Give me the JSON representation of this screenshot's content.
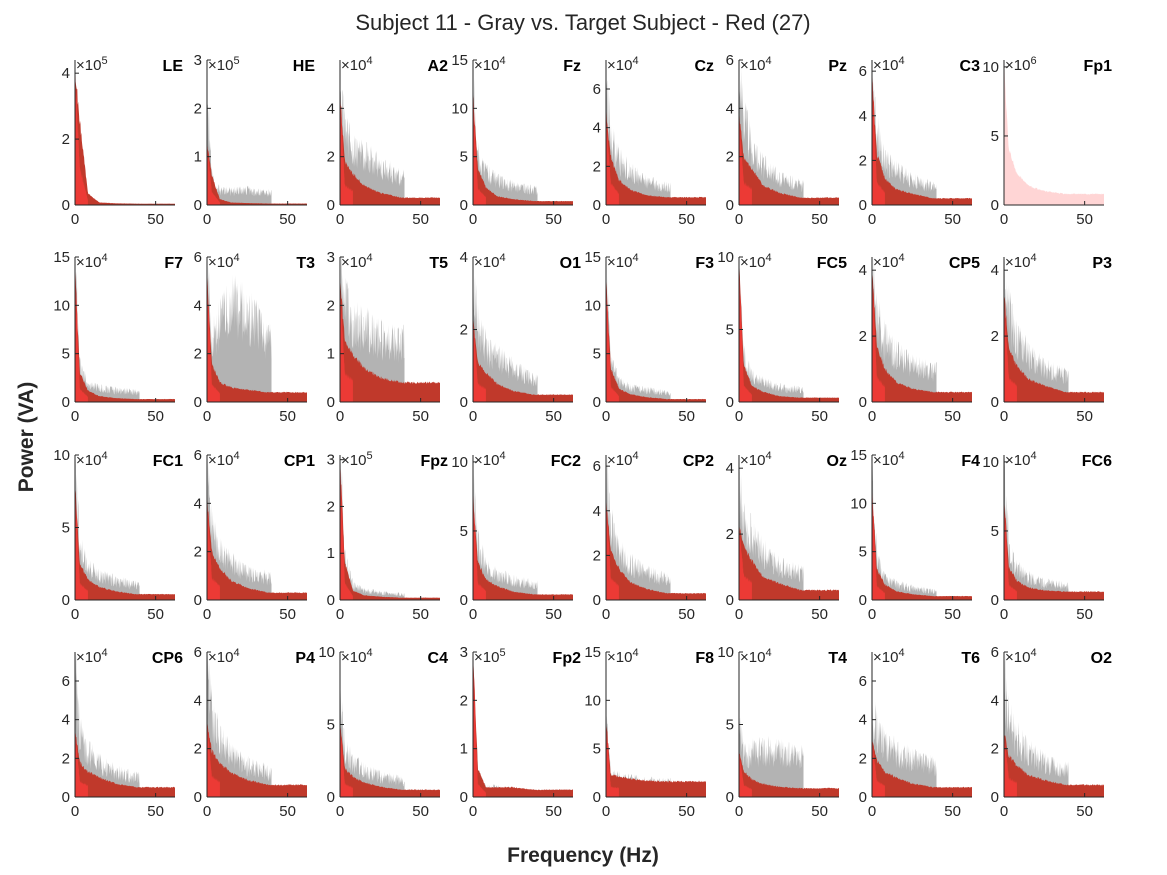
{
  "chart_data": {
    "type": "area",
    "title": "Subject 11 - Gray vs. Target Subject - Red (27)",
    "xlabel": "Frequency (Hz)",
    "ylabel": "Power (VA)",
    "xlim": [
      0,
      62
    ],
    "xticks": [
      0,
      50
    ],
    "grid": false,
    "colors": {
      "gray": "#b3b3b3",
      "red": "#c0392b",
      "red_bright": "#ff3b3b",
      "axes": "#262626"
    },
    "series_legend": [
      {
        "name": "Gray",
        "color": "#b3b3b3"
      },
      {
        "name": "Red",
        "color": "#c0392b"
      }
    ],
    "panels": [
      {
        "label": "LE",
        "exp": "5",
        "ymax": 4.4,
        "yticks": [
          "0",
          "2",
          "4"
        ],
        "gray": [
          0.0,
          0.4,
          0.17,
          0.05,
          0.04,
          0.04
        ],
        "red": [
          4.1,
          2.5,
          0.35,
          0.08,
          0.05,
          0.04
        ]
      },
      {
        "label": "HE",
        "exp": "5",
        "ymax": 3,
        "yticks": [
          "0",
          "1",
          "2",
          "3"
        ],
        "gray": [
          2.2,
          0.55,
          0.3,
          0.28,
          0.3,
          0.25
        ],
        "red": [
          1.3,
          0.6,
          0.12,
          0.05,
          0.04,
          0.03
        ]
      },
      {
        "label": "A2",
        "exp": "4",
        "ymax": 6,
        "yticks": [
          "0",
          "2",
          "4"
        ],
        "gray": [
          4.8,
          3.0,
          2.3,
          2.0,
          1.6,
          1.1
        ],
        "red": [
          4.7,
          1.8,
          1.3,
          0.8,
          0.5,
          0.3
        ]
      },
      {
        "label": "Fz",
        "exp": "4",
        "ymax": 15,
        "yticks": [
          "0",
          "5",
          "10",
          "15"
        ],
        "gray": [
          12.0,
          5.0,
          3.2,
          2.5,
          1.9,
          1.5
        ],
        "red": [
          11.5,
          3.8,
          1.8,
          0.9,
          0.6,
          0.4
        ]
      },
      {
        "label": "Cz",
        "exp": "4",
        "ymax": 7.5,
        "yticks": [
          "0",
          "2",
          "4",
          "6"
        ],
        "gray": [
          6.8,
          3.4,
          2.3,
          1.7,
          1.2,
          0.9
        ],
        "red": [
          4.8,
          2.5,
          1.3,
          0.8,
          0.5,
          0.4
        ]
      },
      {
        "label": "Pz",
        "exp": "4",
        "ymax": 6,
        "yticks": [
          "0",
          "2",
          "4",
          "6"
        ],
        "gray": [
          5.0,
          3.5,
          2.3,
          1.6,
          1.1,
          0.8
        ],
        "red": [
          3.7,
          2.0,
          1.5,
          0.8,
          0.5,
          0.3
        ]
      },
      {
        "label": "C3",
        "exp": "4",
        "ymax": 6.5,
        "yticks": [
          "0",
          "2",
          "4",
          "6"
        ],
        "gray": [
          6.2,
          3.2,
          2.0,
          1.5,
          1.1,
          0.8
        ],
        "red": [
          5.8,
          2.3,
          1.2,
          0.7,
          0.5,
          0.3
        ]
      },
      {
        "label": "Fp1",
        "exp": "6",
        "ymax": 10.5,
        "yticks": [
          "0",
          "5",
          "10"
        ],
        "gray": [
          0.0,
          0.0,
          0.0,
          0.0,
          0.0,
          0.0
        ],
        "red": [
          10.2,
          4.0,
          2.3,
          1.4,
          1.0,
          0.8
        ]
      },
      {
        "label": "F7",
        "exp": "4",
        "ymax": 15,
        "yticks": [
          "0",
          "5",
          "10",
          "15"
        ],
        "gray": [
          14.0,
          3.5,
          1.8,
          1.4,
          1.2,
          1.0
        ],
        "red": [
          14.0,
          3.0,
          1.2,
          0.6,
          0.4,
          0.3
        ]
      },
      {
        "label": "T3",
        "exp": "4",
        "ymax": 6,
        "yticks": [
          "0",
          "2",
          "4",
          "6"
        ],
        "gray": [
          5.3,
          2.6,
          3.2,
          4.0,
          3.6,
          2.5
        ],
        "red": [
          5.3,
          1.6,
          0.8,
          0.6,
          0.5,
          0.4
        ]
      },
      {
        "label": "T5",
        "exp": "4",
        "ymax": 3,
        "yticks": [
          "0",
          "1",
          "2",
          "3"
        ],
        "gray": [
          2.8,
          2.0,
          1.6,
          1.5,
          1.3,
          1.2
        ],
        "red": [
          2.5,
          1.3,
          1.0,
          0.7,
          0.5,
          0.4
        ]
      },
      {
        "label": "O1",
        "exp": "4",
        "ymax": 4,
        "yticks": [
          "0",
          "2",
          "4"
        ],
        "gray": [
          3.6,
          2.2,
          1.5,
          1.2,
          0.9,
          0.6
        ],
        "red": [
          2.3,
          1.1,
          0.8,
          0.5,
          0.3,
          0.2
        ]
      },
      {
        "label": "F3",
        "exp": "4",
        "ymax": 15,
        "yticks": [
          "0",
          "5",
          "10",
          "15"
        ],
        "gray": [
          13.5,
          4.0,
          2.0,
          1.5,
          1.2,
          0.9
        ],
        "red": [
          13.0,
          3.5,
          1.4,
          0.8,
          0.5,
          0.3
        ]
      },
      {
        "label": "FC5",
        "exp": "4",
        "ymax": 10,
        "yticks": [
          "0",
          "5",
          "10"
        ],
        "gray": [
          9.7,
          3.0,
          1.8,
          1.3,
          1.0,
          0.8
        ],
        "red": [
          9.7,
          2.5,
          1.1,
          0.7,
          0.4,
          0.3
        ]
      },
      {
        "label": "CP5",
        "exp": "4",
        "ymax": 4.4,
        "yticks": [
          "0",
          "2",
          "4"
        ],
        "gray": [
          4.2,
          2.7,
          1.8,
          1.4,
          1.1,
          0.9
        ],
        "red": [
          4.0,
          1.7,
          1.0,
          0.6,
          0.4,
          0.3
        ]
      },
      {
        "label": "P3",
        "exp": "4",
        "ymax": 4.4,
        "yticks": [
          "0",
          "2",
          "4"
        ],
        "gray": [
          3.8,
          2.7,
          1.9,
          1.4,
          1.0,
          0.8
        ],
        "red": [
          3.3,
          1.6,
          1.1,
          0.7,
          0.5,
          0.3
        ]
      },
      {
        "label": "FC1",
        "exp": "4",
        "ymax": 10,
        "yticks": [
          "0",
          "5",
          "10"
        ],
        "gray": [
          8.5,
          3.8,
          2.2,
          1.7,
          1.3,
          1.0
        ],
        "red": [
          8.0,
          2.5,
          1.4,
          0.9,
          0.6,
          0.4
        ]
      },
      {
        "label": "CP1",
        "exp": "4",
        "ymax": 6,
        "yticks": [
          "0",
          "2",
          "4",
          "6"
        ],
        "gray": [
          5.0,
          3.0,
          2.0,
          1.5,
          1.1,
          0.9
        ],
        "red": [
          4.3,
          2.0,
          1.3,
          0.8,
          0.5,
          0.3
        ]
      },
      {
        "label": "Fpz",
        "exp": "5",
        "ymax": 3.1,
        "yticks": [
          "0",
          "1",
          "2",
          "3"
        ],
        "gray": [
          2.9,
          0.9,
          0.3,
          0.2,
          0.15,
          0.12
        ],
        "red": [
          3.0,
          0.8,
          0.2,
          0.1,
          0.07,
          0.05
        ]
      },
      {
        "label": "FC2",
        "exp": "4",
        "ymax": 10.5,
        "yticks": [
          "0",
          "5",
          "10"
        ],
        "gray": [
          8.5,
          4.0,
          2.3,
          1.8,
          1.4,
          1.1
        ],
        "red": [
          7.8,
          2.7,
          1.5,
          1.0,
          0.6,
          0.4
        ]
      },
      {
        "label": "CP2",
        "exp": "4",
        "ymax": 6.5,
        "yticks": [
          "0",
          "2",
          "4",
          "6"
        ],
        "gray": [
          5.5,
          3.2,
          2.2,
          1.6,
          1.2,
          0.9
        ],
        "red": [
          4.6,
          2.2,
          1.4,
          0.8,
          0.5,
          0.3
        ]
      },
      {
        "label": "Oz",
        "exp": "4",
        "ymax": 4.4,
        "yticks": [
          "0",
          "2",
          "4"
        ],
        "gray": [
          3.5,
          2.4,
          1.9,
          1.4,
          1.0,
          0.8
        ],
        "red": [
          2.3,
          1.6,
          1.2,
          0.7,
          0.5,
          0.3
        ]
      },
      {
        "label": "F4",
        "exp": "4",
        "ymax": 15,
        "yticks": [
          "0",
          "5",
          "10",
          "15"
        ],
        "gray": [
          12.0,
          4.0,
          2.2,
          1.6,
          1.2,
          0.9
        ],
        "red": [
          11.5,
          3.2,
          1.6,
          0.9,
          0.6,
          0.4
        ]
      },
      {
        "label": "FC6",
        "exp": "4",
        "ymax": 10.5,
        "yticks": [
          "0",
          "5",
          "10"
        ],
        "gray": [
          9.8,
          3.6,
          2.2,
          1.6,
          1.2,
          1.0
        ],
        "red": [
          7.5,
          2.4,
          1.4,
          0.9,
          0.7,
          0.6
        ]
      },
      {
        "label": "CP6",
        "exp": "4",
        "ymax": 7.5,
        "yticks": [
          "0",
          "2",
          "4",
          "6"
        ],
        "gray": [
          6.5,
          3.2,
          2.3,
          1.7,
          1.3,
          1.0
        ],
        "red": [
          3.5,
          1.8,
          1.3,
          1.0,
          0.7,
          0.5
        ]
      },
      {
        "label": "P4",
        "exp": "4",
        "ymax": 6,
        "yticks": [
          "0",
          "2",
          "4",
          "6"
        ],
        "gray": [
          5.5,
          3.3,
          2.3,
          1.7,
          1.3,
          1.0
        ],
        "red": [
          3.2,
          1.9,
          1.4,
          1.0,
          0.7,
          0.5
        ]
      },
      {
        "label": "C4",
        "exp": "4",
        "ymax": 10,
        "yticks": [
          "0",
          "5",
          "10"
        ],
        "gray": [
          6.5,
          3.2,
          2.3,
          1.8,
          1.4,
          1.1
        ],
        "red": [
          5.2,
          2.0,
          1.4,
          1.0,
          0.7,
          0.5
        ]
      },
      {
        "label": "Fp2",
        "exp": "5",
        "ymax": 3,
        "yticks": [
          "0",
          "1",
          "2",
          "3"
        ],
        "gray": [
          2.6,
          0.5,
          0.2,
          0.2,
          0.15,
          0.1
        ],
        "red": [
          3.0,
          0.6,
          0.2,
          0.2,
          0.2,
          0.15
        ]
      },
      {
        "label": "F8",
        "exp": "4",
        "ymax": 15,
        "yticks": [
          "0",
          "5",
          "10",
          "15"
        ],
        "gray": [
          8.0,
          2.2,
          2.0,
          1.8,
          1.6,
          1.5
        ],
        "red": [
          8.0,
          2.3,
          2.1,
          1.9,
          1.7,
          1.6
        ]
      },
      {
        "label": "T4",
        "exp": "4",
        "ymax": 10,
        "yticks": [
          "0",
          "5",
          "10"
        ],
        "gray": [
          5.0,
          2.8,
          3.0,
          3.2,
          3.0,
          2.7
        ],
        "red": [
          3.2,
          1.8,
          1.2,
          0.9,
          0.7,
          0.6
        ]
      },
      {
        "label": "T6",
        "exp": "4",
        "ymax": 7.5,
        "yticks": [
          "0",
          "2",
          "4",
          "6"
        ],
        "gray": [
          4.2,
          3.5,
          2.8,
          2.3,
          1.9,
          1.6
        ],
        "red": [
          3.0,
          1.9,
          1.3,
          1.0,
          0.7,
          0.5
        ]
      },
      {
        "label": "O2",
        "exp": "4",
        "ymax": 6,
        "yticks": [
          "0",
          "2",
          "4",
          "6"
        ],
        "gray": [
          5.2,
          3.2,
          2.4,
          1.8,
          1.4,
          1.1
        ],
        "red": [
          2.7,
          1.7,
          1.3,
          0.9,
          0.7,
          0.5
        ]
      }
    ]
  }
}
